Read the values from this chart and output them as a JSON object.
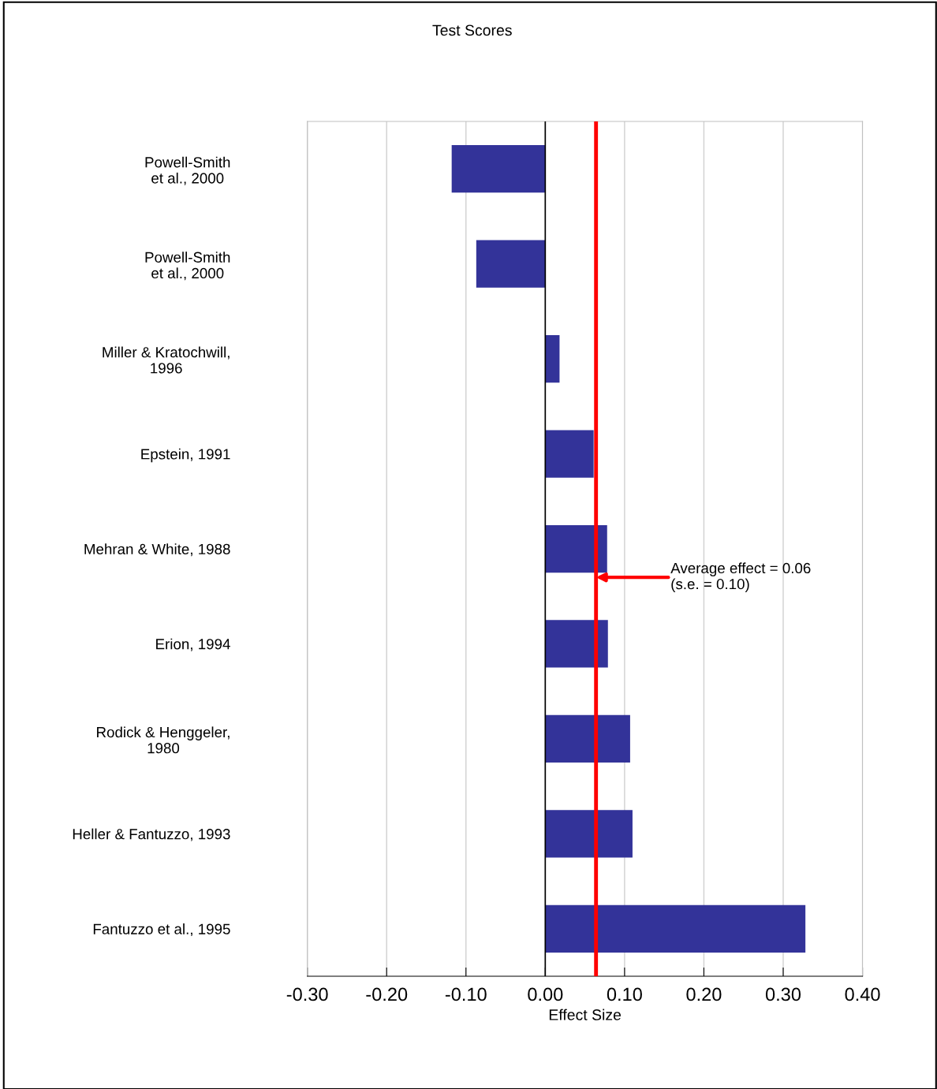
{
  "chart_data": {
    "type": "bar",
    "orientation": "horizontal",
    "title": "Test Scores",
    "xlabel": "Effect Size",
    "categories": [
      "Powell-Smith\net al., 2000",
      "Powell-Smith\net al., 2000",
      "Miller & Kratochwill,\n1996",
      "Epstein, 1991",
      "Mehran & White, 1988",
      "Erion, 1994",
      "Rodick & Henggeler,\n1980",
      "Heller & Fantuzzo, 1993",
      "Fantuzzo et al., 1995"
    ],
    "values": [
      -0.118,
      -0.087,
      0.018,
      0.061,
      0.078,
      0.079,
      0.107,
      0.11,
      0.328
    ],
    "color": "#333399",
    "xlim": [
      -0.3,
      0.4
    ],
    "xticks": [
      {
        "value": -0.3,
        "label": "-0.30"
      },
      {
        "value": -0.2,
        "label": "-0.20"
      },
      {
        "value": -0.1,
        "label": "-0.10"
      },
      {
        "value": 0,
        "label": "0.00"
      },
      {
        "value": 0.1,
        "label": "0.10"
      },
      {
        "value": 0.2,
        "label": "0.20"
      },
      {
        "value": 0.3,
        "label": "0.30"
      },
      {
        "value": 0.4,
        "label": "0.40"
      }
    ],
    "grid": "x",
    "ref_lines": [
      {
        "axis": "x",
        "value": 0.064,
        "color": "#ff0000",
        "label": "Average effect = 0.06\n(s.e. = 0.10)"
      }
    ]
  }
}
